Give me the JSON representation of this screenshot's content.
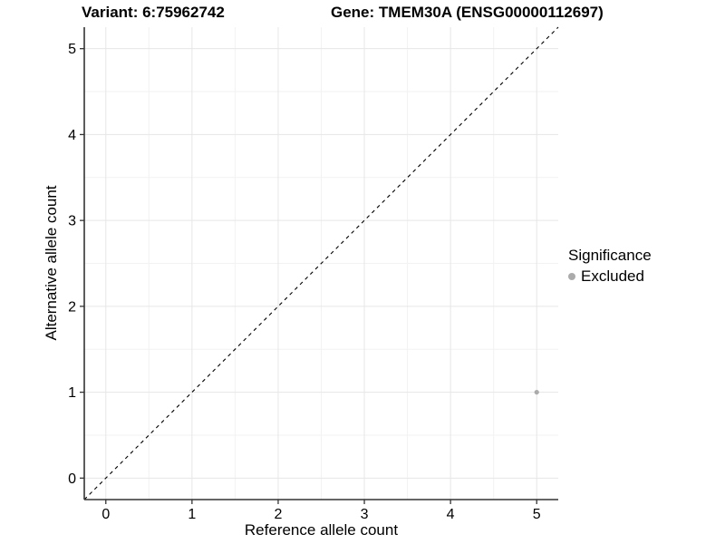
{
  "header": {
    "variant_title": "Variant: 6:75962742",
    "gene_title": "Gene: TMEM30A (ENSG00000112697)"
  },
  "legend": {
    "title": "Significance",
    "position": "right",
    "items": [
      {
        "label": "Excluded",
        "color": "#ababab"
      }
    ]
  },
  "chart_data": {
    "type": "scatter",
    "title": "Variant: 6:75962742    Gene: TMEM30A (ENSG00000112697)",
    "xlabel": "Reference allele count",
    "ylabel": "Alternative allele count",
    "xlim": [
      -0.25,
      5.25
    ],
    "ylim": [
      -0.25,
      5.25
    ],
    "x_ticks": [
      0,
      1,
      2,
      3,
      4,
      5
    ],
    "y_ticks": [
      0,
      1,
      2,
      3,
      4,
      5
    ],
    "minor_ticks": [
      0.5,
      1.5,
      2.5,
      3.5,
      4.5
    ],
    "grid": {
      "on": true,
      "major_color": "#e6e6e6",
      "minor_color": "#f2f2f2"
    },
    "series": [
      {
        "name": "Excluded",
        "color": "#ababab",
        "points": [
          {
            "x": 5,
            "y": 1
          }
        ]
      }
    ],
    "reference_line": {
      "kind": "identity",
      "from": [
        -0.25,
        -0.25
      ],
      "to": [
        5.25,
        5.25
      ],
      "style": "dashed",
      "color": "#000000"
    },
    "axis_color": "#333333",
    "tick_label_color": "#000000"
  }
}
